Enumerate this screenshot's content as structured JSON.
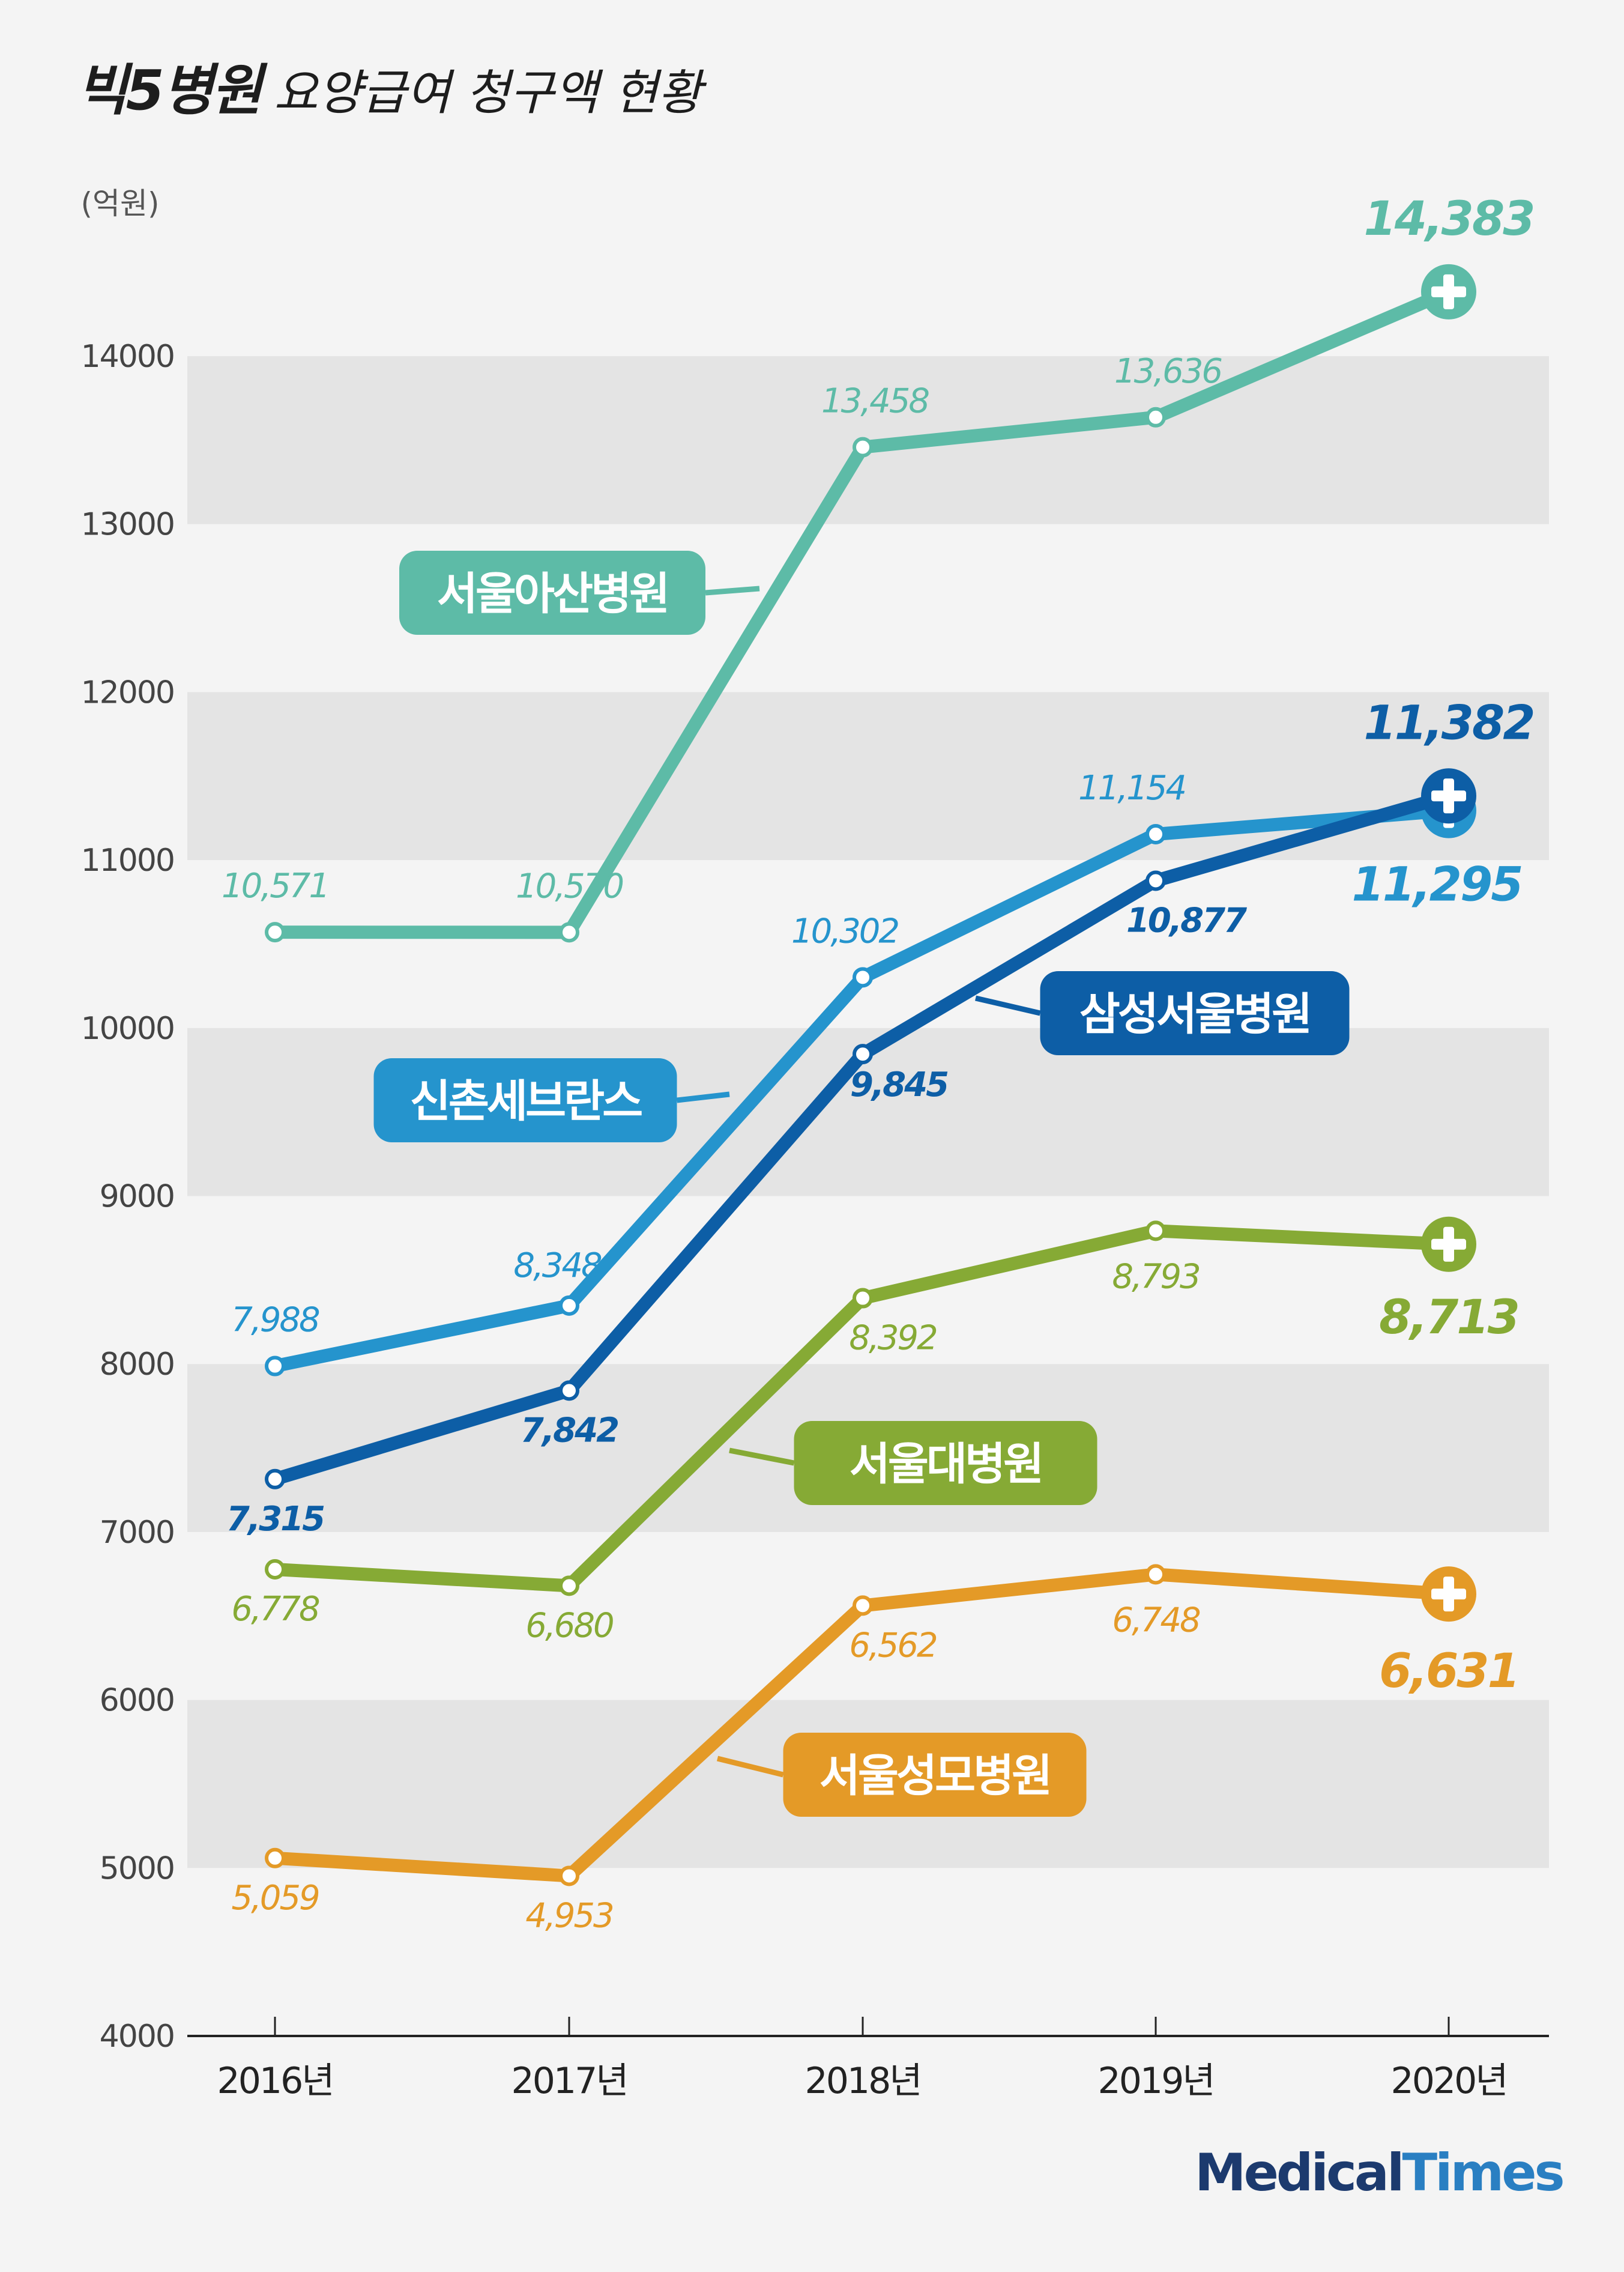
{
  "title": {
    "main": "빅5병원",
    "sub": "요양급여 청구액 현황"
  },
  "brand": {
    "name_a": "Medical",
    "name_b": "Times"
  },
  "chart_data": {
    "type": "line",
    "title": "빅5병원 요양급여 청구액 현황",
    "ylabel": "(억원)",
    "xlabel": "",
    "categories": [
      "2016년",
      "2017년",
      "2018년",
      "2019년",
      "2020년"
    ],
    "ylim": [
      4000,
      15000
    ],
    "yticks": [
      4000,
      5000,
      6000,
      7000,
      8000,
      9000,
      10000,
      11000,
      12000,
      13000,
      14000
    ],
    "grid": "alternating horizontal bands",
    "series": [
      {
        "name": "서울아산병원",
        "values": [
          10571,
          10570,
          13458,
          13636,
          14383
        ],
        "labels": [
          "10,571",
          "10,570",
          "13,458",
          "13,636",
          "14,383"
        ],
        "color": "#5dbba7"
      },
      {
        "name": "신촌세브란스",
        "values": [
          7988,
          8348,
          10302,
          11154,
          11295
        ],
        "labels": [
          "7,988",
          "8,348",
          "10,302",
          "11,154",
          "11,295"
        ],
        "color": "#2594cd"
      },
      {
        "name": "삼성서울병원",
        "values": [
          7315,
          7842,
          9845,
          10877,
          11382
        ],
        "labels": [
          "7,315",
          "7,842",
          "9,845",
          "10,877",
          "11,382"
        ],
        "color": "#0d5ea6"
      },
      {
        "name": "서울대병원",
        "values": [
          6778,
          6680,
          8392,
          8793,
          8713
        ],
        "labels": [
          "6,778",
          "6,680",
          "8,392",
          "8,793",
          "8,713"
        ],
        "color": "#86aa35"
      },
      {
        "name": "서울성모병원",
        "values": [
          5059,
          4953,
          6562,
          6748,
          6631
        ],
        "labels": [
          "5,059",
          "4,953",
          "6,562",
          "6,748",
          "6,631"
        ],
        "color": "#e49a27"
      }
    ]
  }
}
